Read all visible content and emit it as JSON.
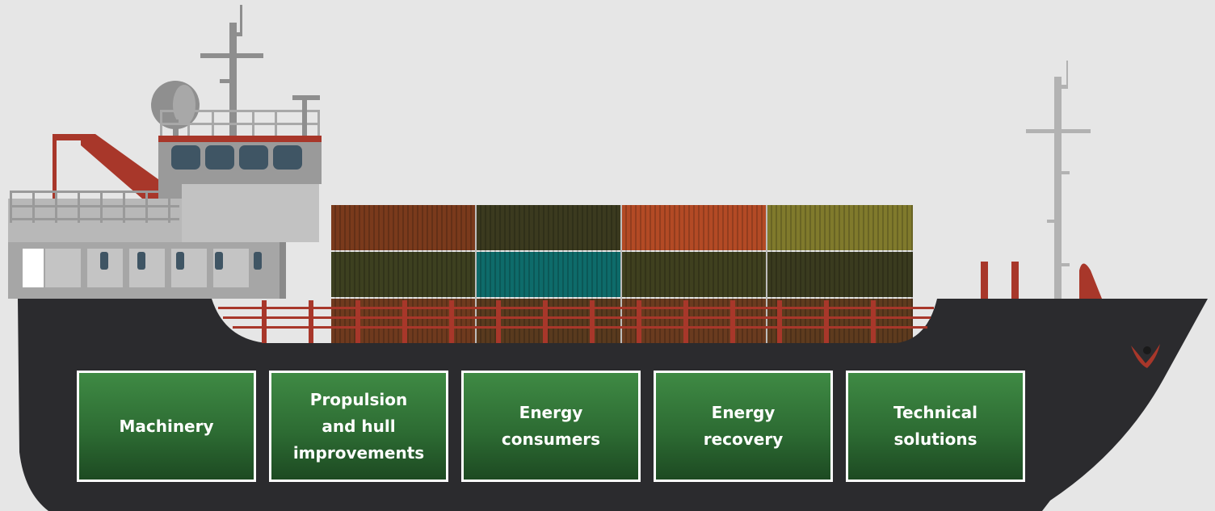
{
  "categories": [
    {
      "id": "machinery",
      "label": "Machinery"
    },
    {
      "id": "propulsion",
      "label": "Propulsion\nand hull\nimprovements"
    },
    {
      "id": "energy-consumers",
      "label": "Energy\nconsumers"
    },
    {
      "id": "energy-recovery",
      "label": "Energy\nrecovery"
    },
    {
      "id": "technical-solutions",
      "label": "Technical\nsolutions"
    }
  ],
  "colors": {
    "background": "#e6e6e6",
    "hull": "#2b2b2e",
    "superstructure": "#b2b2b2",
    "accent_red": "#a8372a",
    "box_green": "#2d6c33",
    "box_border": "#ffffff",
    "container_colors": [
      "#7a3a1c",
      "#3b3a1f",
      "#b34a25",
      "#807a2c",
      "#3d4020",
      "#0e6b6a",
      "#3f401f",
      "#3a3b1f"
    ]
  }
}
